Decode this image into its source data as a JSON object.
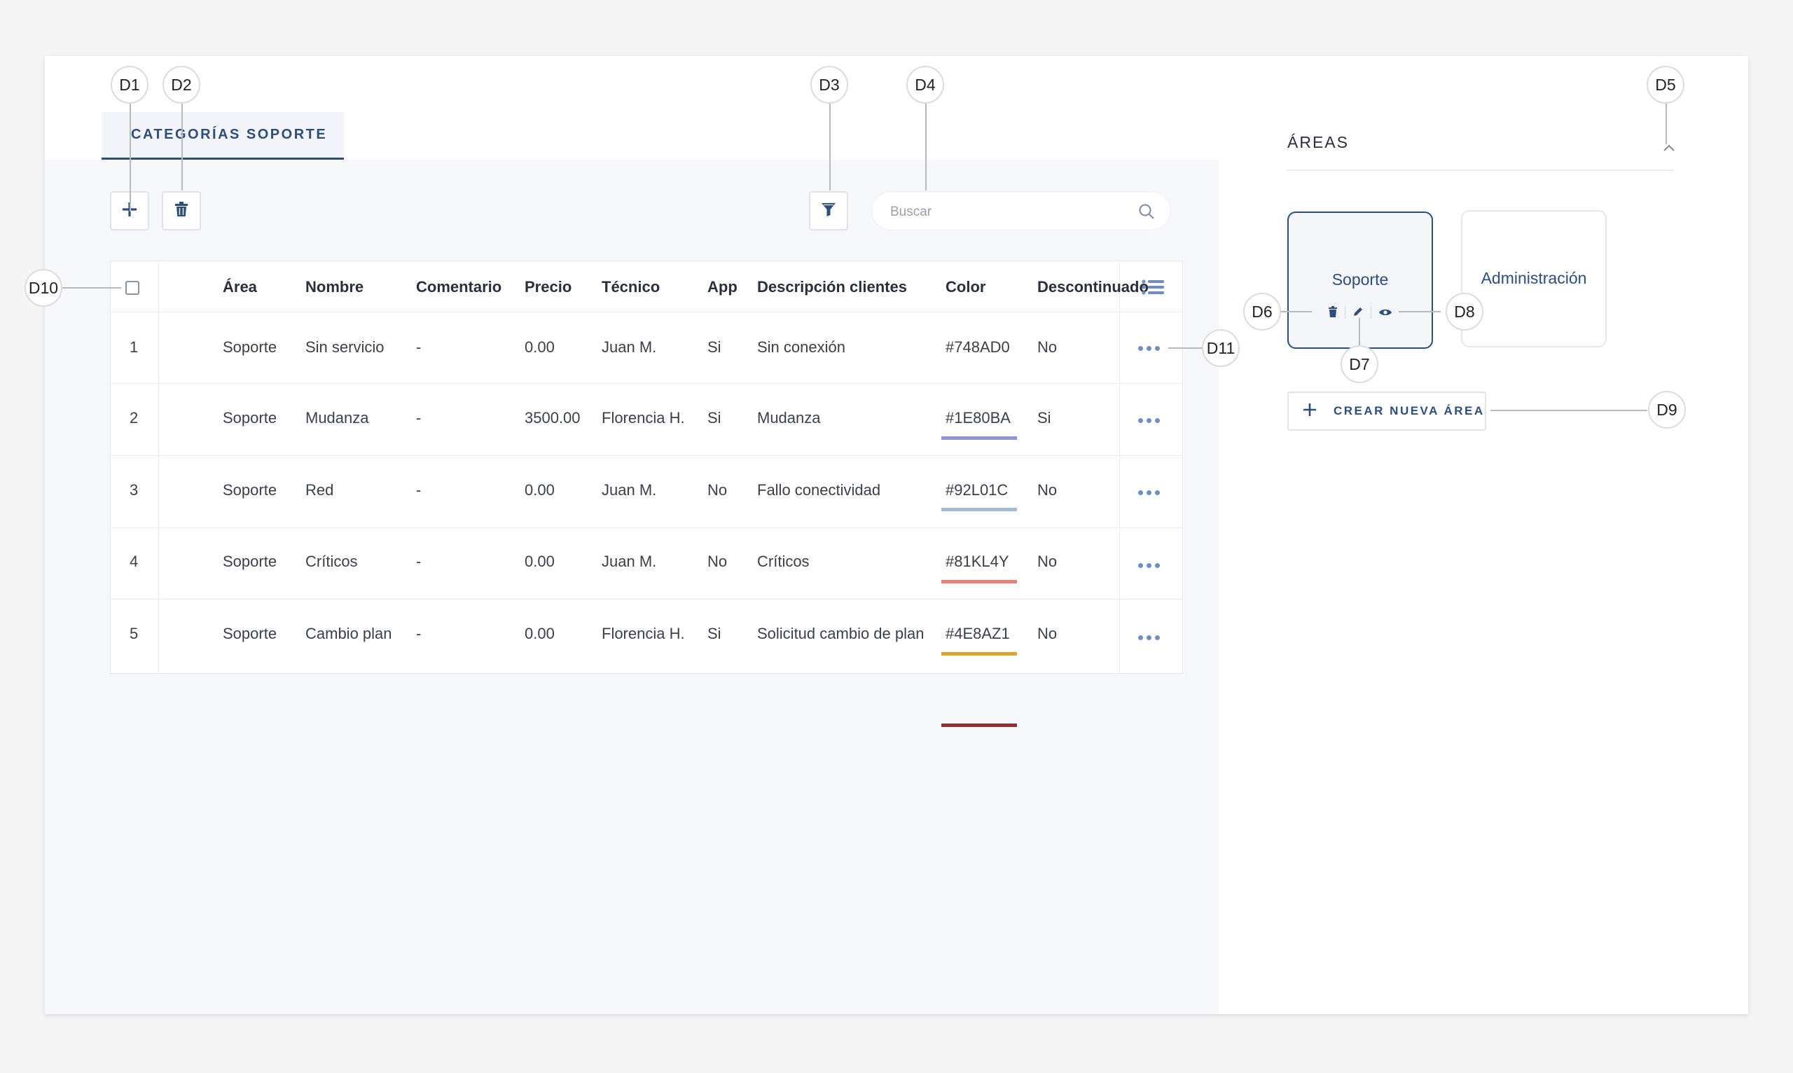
{
  "tab": {
    "label": "CATEGORÍAS SOPORTE"
  },
  "search": {
    "placeholder": "Buscar"
  },
  "table": {
    "headers": {
      "area": "Área",
      "nombre": "Nombre",
      "comentario": "Comentario",
      "precio": "Precio",
      "tecnico": "Técnico",
      "app": "App",
      "descripcion": "Descripción clientes",
      "color": "Color",
      "descontinuado": "Descontinuado"
    },
    "rows": [
      {
        "num": "1",
        "area": "Soporte",
        "nombre": "Sin servicio",
        "comentario": "-",
        "precio": "0.00",
        "tecnico": "Juan M.",
        "app": "Si",
        "descripcion": "Sin conexión",
        "color": "#748AD0",
        "descontinuado": "No",
        "swatch": "#8e95d6"
      },
      {
        "num": "2",
        "area": "Soporte",
        "nombre": "Mudanza",
        "comentario": "-",
        "precio": "3500.00",
        "tecnico": "Florencia H.",
        "app": "Si",
        "descripcion": "Mudanza",
        "color": "#1E80BA",
        "descontinuado": "Si",
        "swatch": "#a4b8d8"
      },
      {
        "num": "3",
        "area": "Soporte",
        "nombre": "Red",
        "comentario": "-",
        "precio": "0.00",
        "tecnico": "Juan M.",
        "app": "No",
        "descripcion": "Fallo conectividad",
        "color": "#92L01C",
        "descontinuado": "No",
        "swatch": "#e88078"
      },
      {
        "num": "4",
        "area": "Soporte",
        "nombre": "Críticos",
        "comentario": "-",
        "precio": "0.00",
        "tecnico": "Juan M.",
        "app": "No",
        "descripcion": "Críticos",
        "color": "#81KL4Y",
        "descontinuado": "No",
        "swatch": "#dfa530"
      },
      {
        "num": "5",
        "area": "Soporte",
        "nombre": "Cambio plan",
        "comentario": "-",
        "precio": "0.00",
        "tecnico": "Florencia H.",
        "app": "Si",
        "descripcion": "Solicitud cambio de plan",
        "color": "#4E8AZ1",
        "descontinuado": "No",
        "swatch": "#8e3030"
      }
    ]
  },
  "areas": {
    "title": "ÁREAS",
    "cards": [
      {
        "label": "Soporte",
        "active": true
      },
      {
        "label": "Administración",
        "active": false
      }
    ],
    "create_label": "CREAR NUEVA ÁREA"
  },
  "callouts": [
    "D1",
    "D2",
    "D3",
    "D4",
    "D5",
    "D6",
    "D7",
    "D8",
    "D9",
    "D10",
    "D11"
  ],
  "colors": {
    "accent": "#2d4d7a",
    "dots": "#6f8fc2"
  }
}
